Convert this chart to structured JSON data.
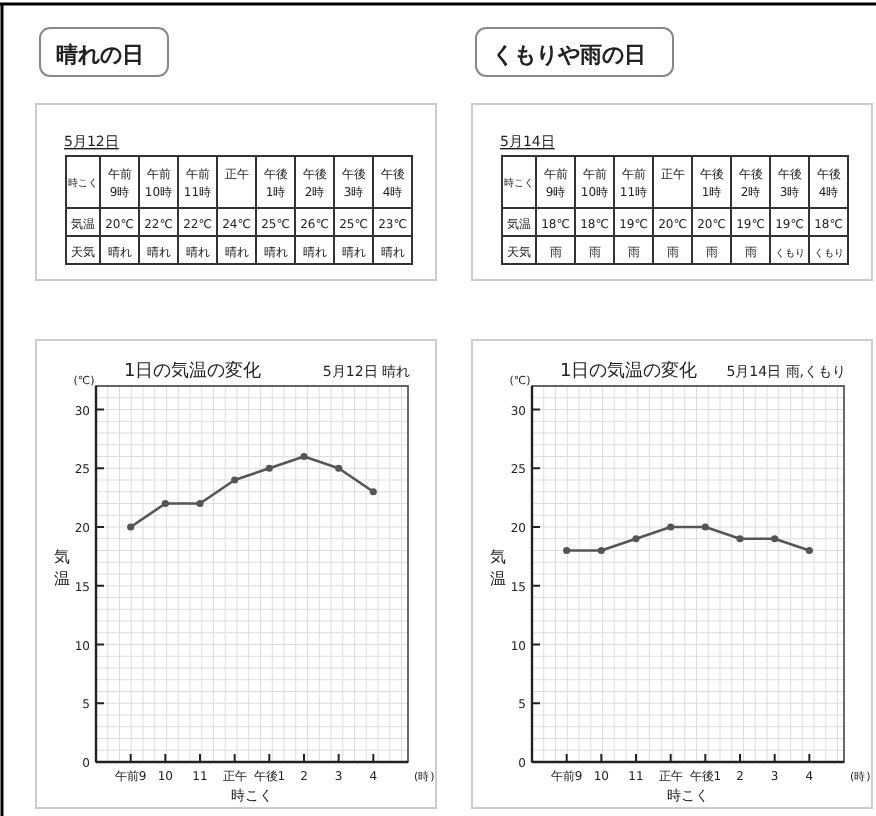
{
  "chart_data": [
    {
      "type": "line",
      "title": "1日の気温の変化",
      "subtitle": "5月12日 晴れ",
      "xlabel": "時こく",
      "ylabel": "気温",
      "categories": [
        "午前9",
        "10",
        "11",
        "正午",
        "午後1",
        "2",
        "3",
        "4"
      ],
      "ylim": [
        0,
        32
      ],
      "yticks": [
        0,
        5,
        10,
        15,
        20,
        25,
        30
      ],
      "grid": true,
      "marker": "circle",
      "line_style": "solid",
      "series": [
        {
          "color": "#555555",
          "values": [
            20,
            22,
            22,
            24,
            25,
            26,
            25,
            23
          ]
        }
      ],
      "annotations": [
        "晴れの日",
        "5月12日",
        "時こく",
        "午前9時",
        "午前10時",
        "午前11時",
        "正午",
        "午後1時",
        "午後2時",
        "午後3時",
        "午後4時",
        "気温",
        "天気",
        "晴れ",
        "晴れ",
        "晴れ",
        "晴れ",
        "晴れ",
        "晴れ",
        "晴れ",
        "晴れ",
        "(℃)",
        "(時)",
        "20℃",
        "22℃",
        "22℃",
        "24℃",
        "25℃",
        "26℃",
        "25℃",
        "23℃"
      ]
    },
    {
      "type": "line",
      "title": "1日の気温の変化",
      "subtitle": "5月14日 雨,くもり",
      "xlabel": "時こく",
      "ylabel": "気温",
      "categories": [
        "午前9",
        "10",
        "11",
        "正午",
        "午後1",
        "2",
        "3",
        "4"
      ],
      "ylim": [
        0,
        32
      ],
      "yticks": [
        0,
        5,
        10,
        15,
        20,
        25,
        30
      ],
      "grid": true,
      "marker": "circle",
      "line_style": "solid",
      "series": [
        {
          "color": "#555555",
          "values": [
            18,
            18,
            19,
            20,
            20,
            19,
            19,
            18
          ]
        }
      ],
      "annotations": [
        "くもりや雨の日",
        "5月14日",
        "時こく",
        "午前9時",
        "午前10時",
        "午前11時",
        "正午",
        "午後1時",
        "午後2時",
        "午後3時",
        "午後4時",
        "気温",
        "天気",
        "雨",
        "雨",
        "雨",
        "雨",
        "雨",
        "雨",
        "くもり",
        "くもり",
        "(℃)",
        "(時)",
        "18℃",
        "18℃",
        "19℃",
        "20℃",
        "20℃",
        "19℃",
        "19℃",
        "18℃"
      ]
    }
  ]
}
